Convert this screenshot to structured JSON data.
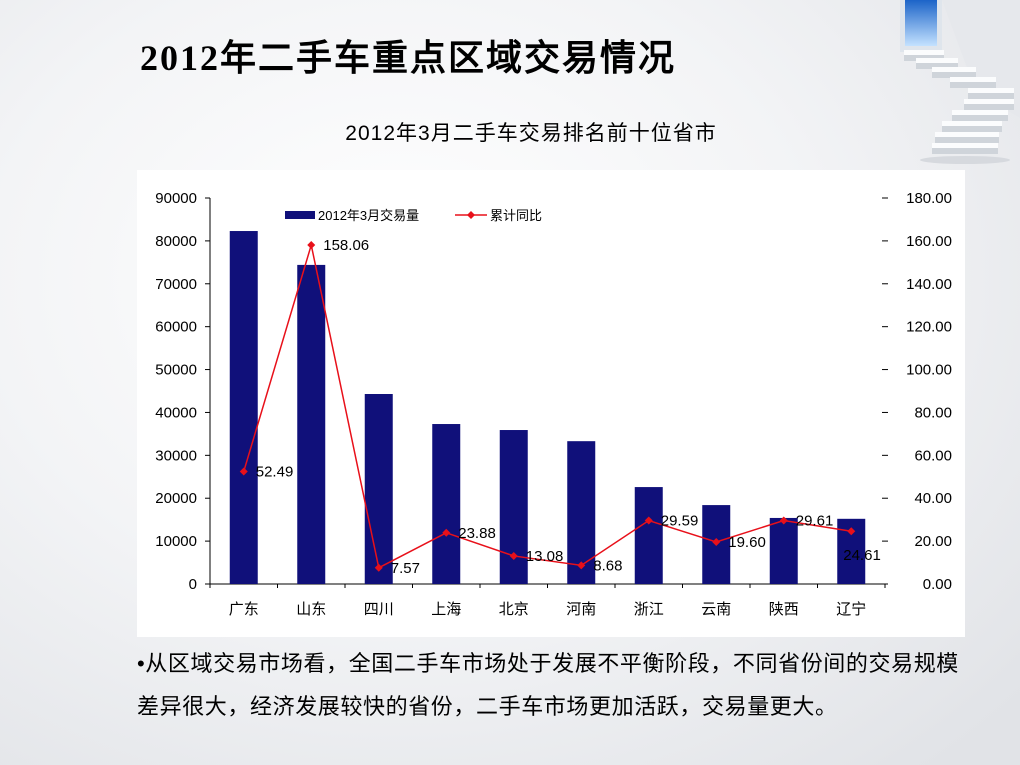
{
  "slide": {
    "title": "2012年二手车重点区域交易情况",
    "bullet": "•从区域交易市场看，全国二手车市场处于发展不平衡阶段，不同省份间的交易规模差异很大，经济发展较快的省份，二手车市场更加活跃，交易量更大。"
  },
  "chart_data": {
    "type": "bar",
    "title": "2012年3月二手车交易排名前十位省市",
    "categories": [
      "广东",
      "山东",
      "四川",
      "上海",
      "北京",
      "河南",
      "浙江",
      "云南",
      "陕西",
      "辽宁"
    ],
    "series": [
      {
        "name": "2012年3月交易量",
        "type": "bar",
        "axis": "left",
        "color": "#10107a",
        "values": [
          82300,
          74400,
          44300,
          37300,
          35900,
          33300,
          22600,
          18400,
          15400,
          15200
        ]
      },
      {
        "name": "累计同比",
        "type": "line",
        "axis": "right",
        "marker": "diamond",
        "color": "#e8101a",
        "values": [
          52.49,
          158.06,
          7.57,
          23.88,
          13.08,
          8.68,
          29.59,
          19.6,
          29.61,
          24.61
        ],
        "data_labels": [
          "52.49",
          "158.06",
          "7.57",
          "23.88",
          "13.08",
          "8.68",
          "29.59",
          "19.60",
          "29.61",
          "24.61"
        ]
      }
    ],
    "y_left": {
      "range": [
        0,
        90000
      ],
      "ticks": [
        "0",
        "10000",
        "20000",
        "30000",
        "40000",
        "50000",
        "60000",
        "70000",
        "80000",
        "90000"
      ]
    },
    "y_right": {
      "range": [
        0,
        180
      ],
      "ticks": [
        "0.00",
        "20.00",
        "40.00",
        "60.00",
        "80.00",
        "100.00",
        "120.00",
        "140.00",
        "160.00",
        "180.00"
      ]
    },
    "legend": "top-left",
    "grid": false
  }
}
